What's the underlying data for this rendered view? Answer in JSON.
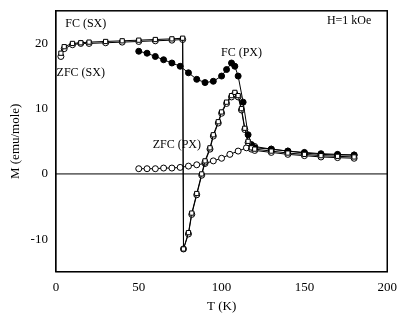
{
  "chart_data": {
    "type": "line",
    "x_label": "T (K)",
    "y_label": "M (emu/mole)",
    "xlim": [
      0,
      200
    ],
    "xticks": [
      0,
      50,
      100,
      150,
      200
    ],
    "ylim": [
      -15,
      25
    ],
    "yticks": [
      -10,
      0,
      10,
      20
    ],
    "grid": false,
    "baseline": 0,
    "annotations": [
      {
        "text": "H=1 kOe",
        "x": 177,
        "y": 23.5
      },
      {
        "text": "FC (SX)",
        "x": 18,
        "y": 23
      },
      {
        "text": "ZFC (SX)",
        "x": 15,
        "y": 15.5
      },
      {
        "text": "FC (PX)",
        "x": 112,
        "y": 18.5
      },
      {
        "text": "ZFC (PX)",
        "x": 73,
        "y": 4.5
      }
    ],
    "series": [
      {
        "name": "FC (SX)",
        "color": "#000000",
        "marker": "open_square",
        "line_style": "solid",
        "x": [
          3,
          5,
          10,
          15,
          20,
          30,
          40,
          50,
          60,
          70,
          76.5,
          77,
          80,
          82,
          85,
          88,
          90,
          93,
          95,
          98,
          100,
          103,
          106,
          108,
          110,
          112,
          114,
          116,
          118,
          120,
          130,
          140,
          150,
          160,
          170,
          180
        ],
        "values": [
          18.5,
          19.5,
          20,
          20.1,
          20.2,
          20.3,
          20.4,
          20.5,
          20.6,
          20.7,
          20.8,
          -11.5,
          -9,
          -6,
          -3,
          0,
          2,
          4,
          6,
          8,
          9.5,
          11,
          12,
          12.5,
          12,
          10,
          7,
          5,
          4,
          3.8,
          3.5,
          3.2,
          3,
          2.8,
          2.7,
          2.6
        ]
      },
      {
        "name": "ZFC (SX)",
        "color": "#000000",
        "marker": "open_circle",
        "line_style": "solid",
        "x": [
          3,
          5,
          10,
          15,
          20,
          30,
          40,
          50,
          60,
          70,
          76.5,
          77,
          80,
          82,
          85,
          88,
          90,
          93,
          95,
          98,
          100,
          103,
          106,
          108,
          110,
          112,
          114,
          116,
          118,
          120,
          130,
          140,
          150,
          160,
          170,
          180
        ],
        "values": [
          18,
          19.2,
          19.8,
          20,
          20,
          20.1,
          20.2,
          20.3,
          20.4,
          20.5,
          20.6,
          -11.5,
          -9.2,
          -6.2,
          -3.2,
          -0.2,
          1.8,
          3.8,
          5.8,
          7.8,
          9.3,
          10.8,
          11.8,
          12.3,
          11.8,
          9.8,
          6.8,
          4.8,
          3.8,
          3.6,
          3.3,
          3,
          2.8,
          2.6,
          2.5,
          2.4
        ]
      },
      {
        "name": "FC (PX)",
        "color": "#000000",
        "marker": "filled_circle",
        "line_style": "solid",
        "x": [
          50,
          55,
          60,
          65,
          70,
          75,
          80,
          85,
          90,
          95,
          100,
          103,
          106,
          108,
          110,
          113,
          116,
          118,
          120,
          130,
          140,
          150,
          160,
          170,
          180
        ],
        "values": [
          18.8,
          18.5,
          18,
          17.5,
          17,
          16.5,
          15.5,
          14.5,
          14,
          14.2,
          15,
          16,
          17,
          16.5,
          15,
          11,
          6,
          4.5,
          4,
          3.8,
          3.5,
          3.3,
          3.1,
          3,
          2.9
        ]
      },
      {
        "name": "ZFC (PX)",
        "color": "#000000",
        "marker": "open_circle",
        "line_style": "solid",
        "x": [
          50,
          55,
          60,
          65,
          70,
          75,
          80,
          85,
          90,
          95,
          100,
          105,
          110,
          115,
          120,
          130,
          140,
          150,
          160,
          170,
          180
        ],
        "values": [
          0.8,
          0.8,
          0.8,
          0.9,
          0.9,
          1,
          1.2,
          1.4,
          1.6,
          2,
          2.4,
          3,
          3.5,
          4,
          4.2,
          3.8,
          3.5,
          3.2,
          3,
          2.9,
          2.9
        ]
      }
    ]
  }
}
